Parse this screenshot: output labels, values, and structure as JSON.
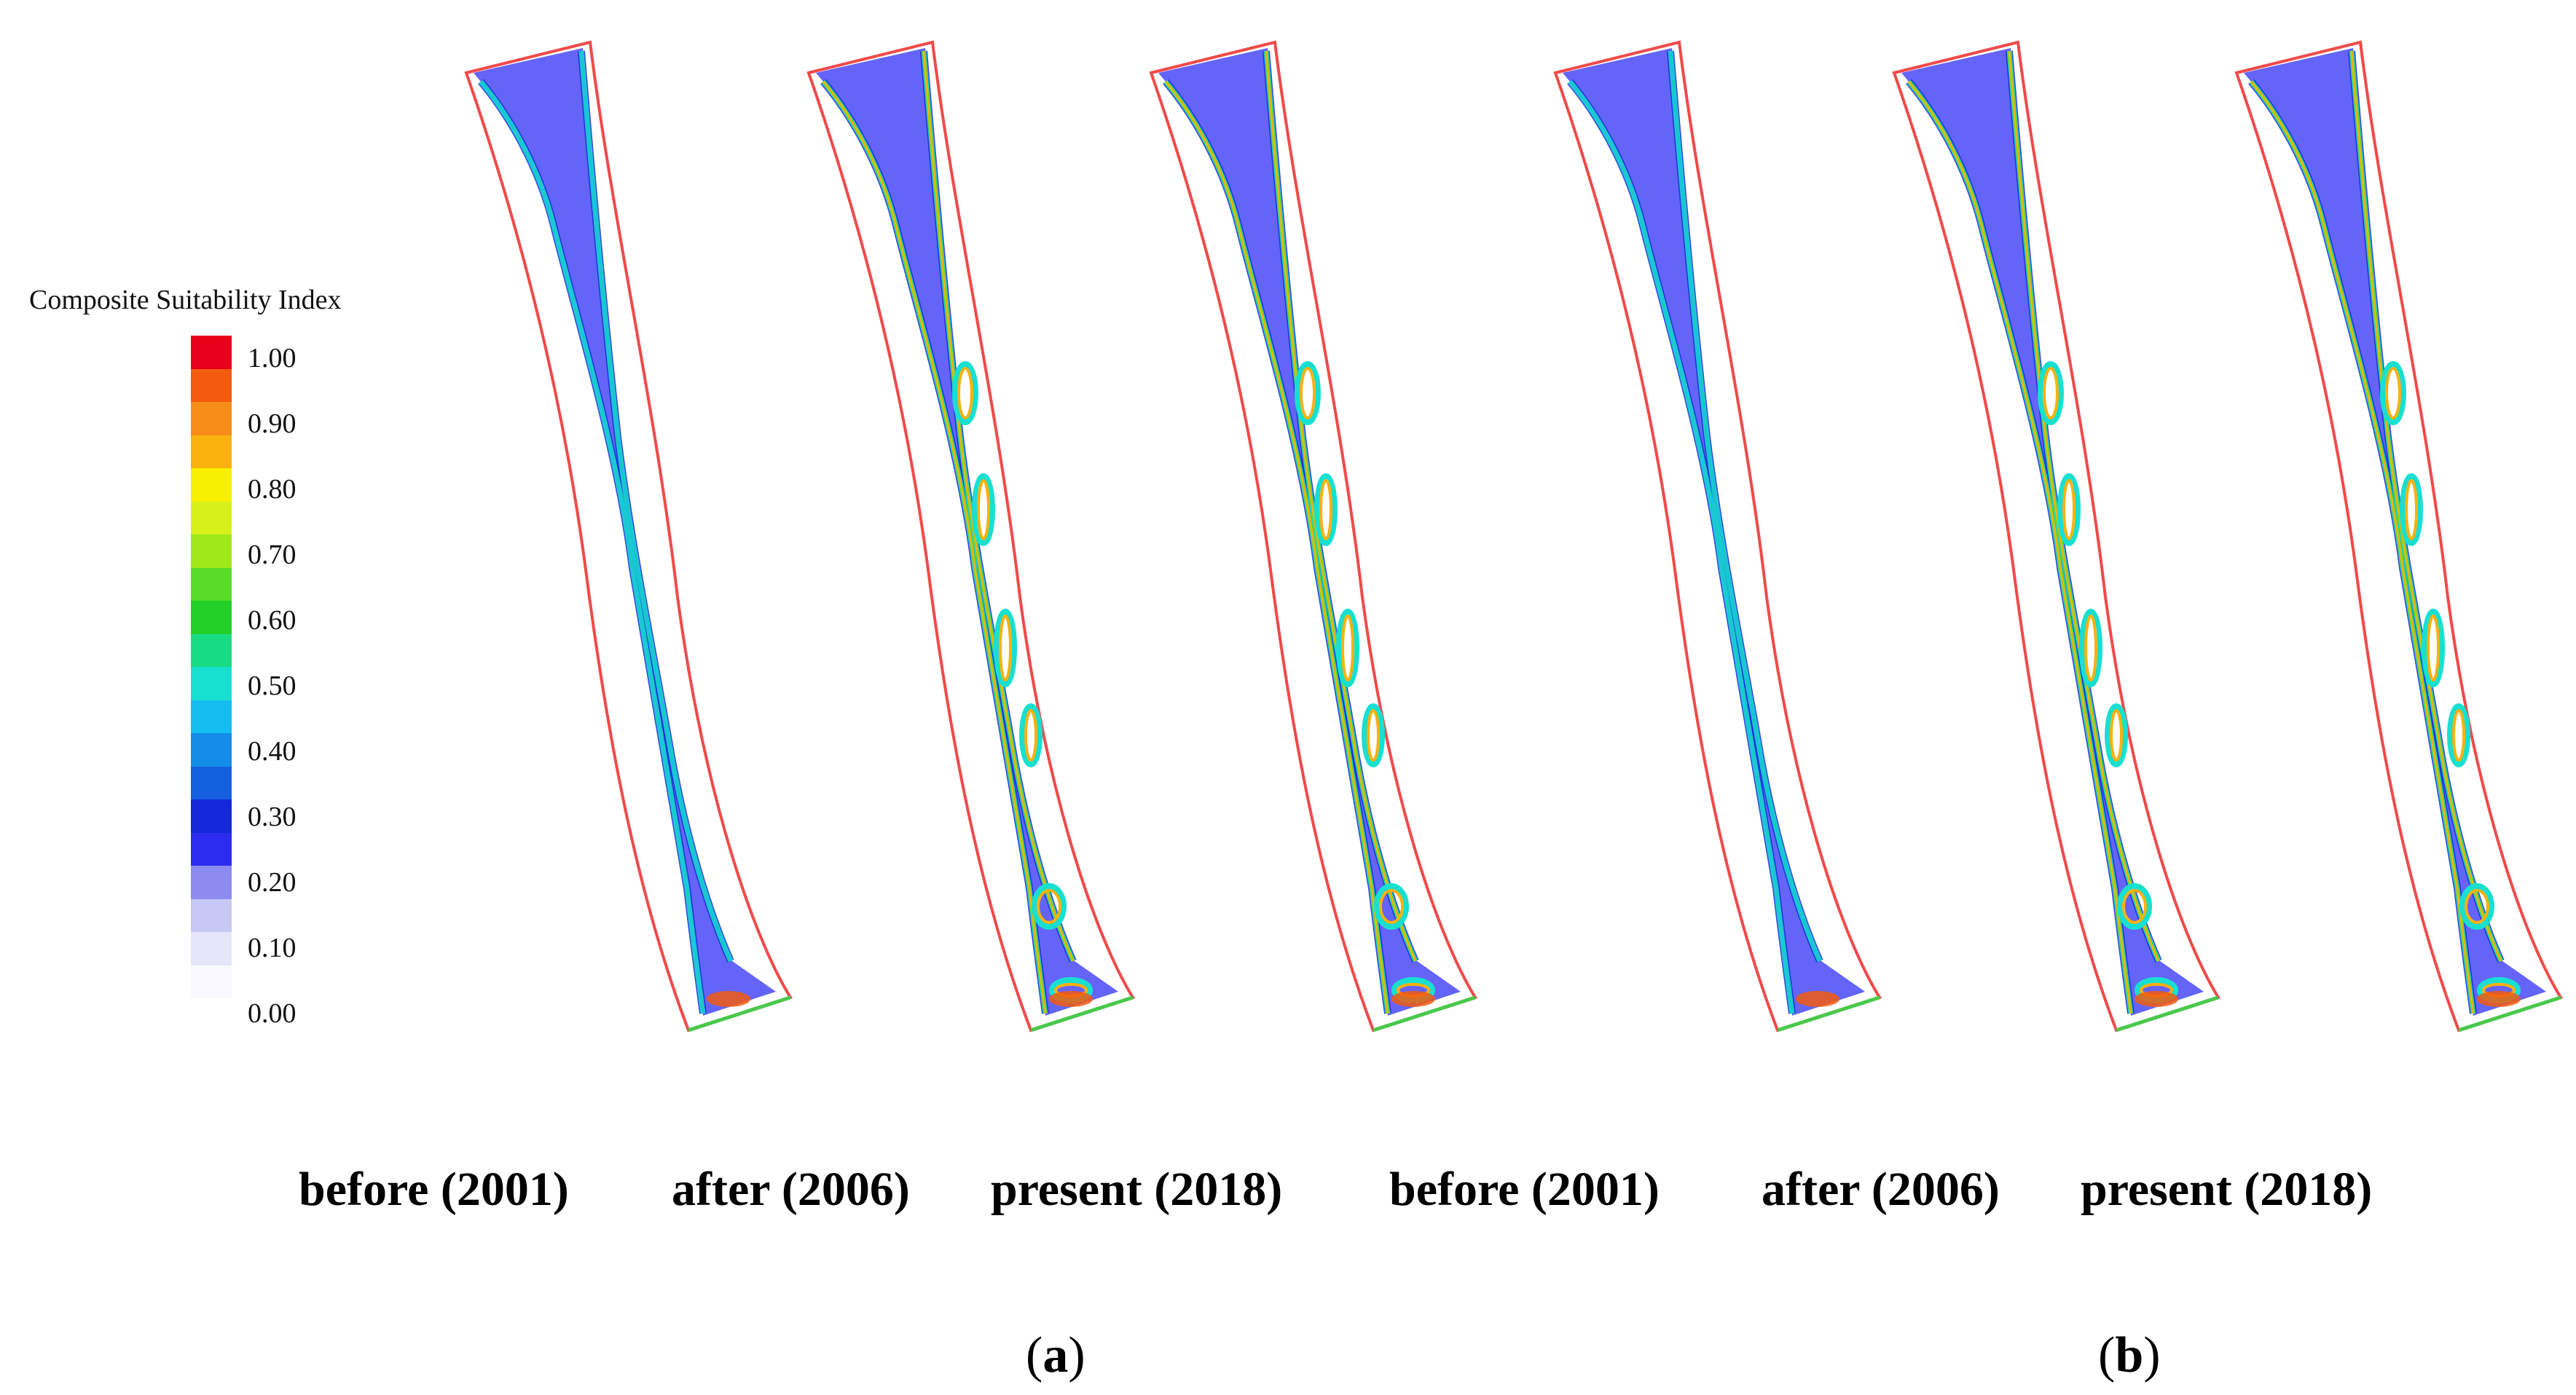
{
  "legend": {
    "title": "Composite Suitability Index",
    "ticks": [
      "1.00",
      "0.90",
      "0.80",
      "0.70",
      "0.60",
      "0.50",
      "0.40",
      "0.30",
      "0.20",
      "0.10",
      "0.00"
    ],
    "colors": [
      "#e8001a",
      "#f35b0e",
      "#f78c18",
      "#fbb10e",
      "#f7f000",
      "#d8f01a",
      "#a0e818",
      "#58dc28",
      "#22d028",
      "#18dc84",
      "#18e0d0",
      "#14bcf0",
      "#148ce8",
      "#1460e0",
      "#1428d8",
      "#2c2cf0",
      "#8c8cf0",
      "#c8c8f4",
      "#e6e6fa",
      "#f8f8fe"
    ]
  },
  "maps": [
    {
      "period": "before (2001)",
      "panel": "a"
    },
    {
      "period": "after (2006)",
      "panel": "a"
    },
    {
      "period": "present (2018)",
      "panel": "a"
    },
    {
      "period": "before (2001)",
      "panel": "b"
    },
    {
      "period": "after (2006)",
      "panel": "b"
    },
    {
      "period": "present (2018)",
      "panel": "b"
    }
  ],
  "labels": {
    "periods": [
      "before (2001)",
      "after (2006)",
      "present (2018)",
      "before (2001)",
      "after (2006)",
      "present (2018)"
    ],
    "panel_a": "a",
    "panel_b": "b"
  },
  "colors": {
    "water": "#6464f8",
    "boundary": "#f04a4a",
    "downstream_edge": "#4ac84a"
  }
}
